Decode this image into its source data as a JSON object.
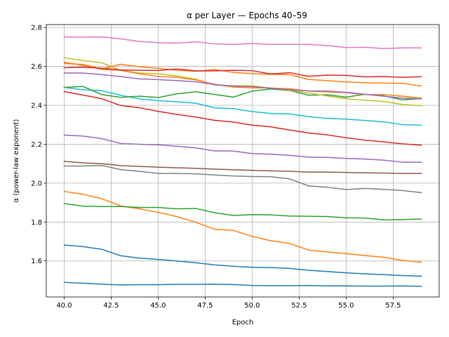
{
  "chart_data": {
    "type": "line",
    "title": "α per Layer — Epochs 40–59",
    "xlabel": "Epoch",
    "ylabel": "α (power-law exponent)",
    "xlim": [
      39.05,
      59.95
    ],
    "ylim": [
      1.415,
      2.815
    ],
    "xticks": [
      40.0,
      42.5,
      45.0,
      47.5,
      50.0,
      52.5,
      55.0,
      57.5
    ],
    "xtick_labels": [
      "40.0",
      "42.5",
      "45.0",
      "47.5",
      "50.0",
      "52.5",
      "55.0",
      "57.5"
    ],
    "yticks": [
      1.6,
      1.8,
      2.0,
      2.2,
      2.4,
      2.6,
      2.8
    ],
    "ytick_labels": [
      "1.6",
      "1.8",
      "2.0",
      "2.2",
      "2.4",
      "2.6",
      "2.8"
    ],
    "grid": true,
    "x": [
      40,
      41,
      42,
      43,
      44,
      45,
      46,
      47,
      48,
      49,
      50,
      51,
      52,
      53,
      54,
      55,
      56,
      57,
      58,
      59
    ],
    "series": [
      {
        "color": "#1f77b4",
        "values": [
          1.49,
          1.486,
          1.481,
          1.477,
          1.478,
          1.478,
          1.48,
          1.48,
          1.481,
          1.479,
          1.474,
          1.473,
          1.473,
          1.474,
          1.472,
          1.472,
          1.471,
          1.471,
          1.472,
          1.47
        ]
      },
      {
        "color": "#1f77b4",
        "values": [
          1.682,
          1.674,
          1.66,
          1.627,
          1.615,
          1.608,
          1.6,
          1.591,
          1.58,
          1.573,
          1.568,
          1.566,
          1.562,
          1.552,
          1.546,
          1.539,
          1.534,
          1.53,
          1.525,
          1.522
        ]
      },
      {
        "color": "#ff7f0e",
        "values": [
          1.957,
          1.943,
          1.92,
          1.883,
          1.868,
          1.85,
          1.828,
          1.799,
          1.763,
          1.757,
          1.726,
          1.704,
          1.69,
          1.656,
          1.647,
          1.638,
          1.628,
          1.619,
          1.603,
          1.594
        ]
      },
      {
        "color": "#2ca02c",
        "values": [
          1.895,
          1.882,
          1.88,
          1.88,
          1.875,
          1.875,
          1.868,
          1.87,
          1.848,
          1.834,
          1.838,
          1.837,
          1.831,
          1.83,
          1.828,
          1.822,
          1.821,
          1.811,
          1.813,
          1.816
        ]
      },
      {
        "color": "#8c564b",
        "values": [
          2.112,
          2.104,
          2.1,
          2.09,
          2.086,
          2.082,
          2.079,
          2.076,
          2.072,
          2.069,
          2.066,
          2.063,
          2.061,
          2.057,
          2.057,
          2.055,
          2.053,
          2.052,
          2.05,
          2.05
        ]
      },
      {
        "color": "#7f7f7f",
        "values": [
          2.088,
          2.088,
          2.091,
          2.07,
          2.061,
          2.05,
          2.05,
          2.048,
          2.042,
          2.037,
          2.034,
          2.033,
          2.022,
          1.986,
          1.979,
          1.967,
          1.973,
          1.968,
          1.962,
          1.951
        ]
      },
      {
        "color": "#9467bd",
        "values": [
          2.247,
          2.242,
          2.229,
          2.204,
          2.2,
          2.197,
          2.19,
          2.181,
          2.166,
          2.165,
          2.152,
          2.149,
          2.143,
          2.134,
          2.132,
          2.127,
          2.124,
          2.118,
          2.108,
          2.108
        ]
      },
      {
        "color": "#d62728",
        "values": [
          2.471,
          2.453,
          2.434,
          2.399,
          2.388,
          2.369,
          2.353,
          2.34,
          2.323,
          2.314,
          2.298,
          2.289,
          2.273,
          2.258,
          2.248,
          2.233,
          2.221,
          2.212,
          2.202,
          2.195
        ]
      },
      {
        "color": "#17becf",
        "values": [
          2.492,
          2.48,
          2.475,
          2.452,
          2.433,
          2.424,
          2.418,
          2.411,
          2.387,
          2.383,
          2.368,
          2.358,
          2.356,
          2.342,
          2.333,
          2.329,
          2.322,
          2.315,
          2.301,
          2.298
        ]
      },
      {
        "color": "#2ca02c",
        "values": [
          2.492,
          2.497,
          2.455,
          2.441,
          2.447,
          2.44,
          2.459,
          2.47,
          2.456,
          2.442,
          2.473,
          2.484,
          2.476,
          2.452,
          2.454,
          2.442,
          2.457,
          2.449,
          2.428,
          2.435
        ]
      },
      {
        "color": "#bcbd22",
        "values": [
          2.645,
          2.63,
          2.619,
          2.579,
          2.566,
          2.563,
          2.551,
          2.534,
          2.504,
          2.5,
          2.5,
          2.488,
          2.477,
          2.463,
          2.448,
          2.434,
          2.426,
          2.42,
          2.404,
          2.398
        ]
      },
      {
        "color": "#ff7f0e",
        "values": [
          2.622,
          2.605,
          2.585,
          2.58,
          2.562,
          2.549,
          2.544,
          2.531,
          2.508,
          2.494,
          2.49,
          2.489,
          2.485,
          2.473,
          2.469,
          2.465,
          2.455,
          2.455,
          2.447,
          2.437
        ]
      },
      {
        "color": "#ff7f0e",
        "values": [
          2.615,
          2.61,
          2.587,
          2.611,
          2.598,
          2.59,
          2.58,
          2.575,
          2.584,
          2.569,
          2.563,
          2.559,
          2.558,
          2.533,
          2.527,
          2.52,
          2.516,
          2.514,
          2.513,
          2.499
        ]
      },
      {
        "color": "#d62728",
        "values": [
          2.593,
          2.596,
          2.591,
          2.582,
          2.58,
          2.579,
          2.587,
          2.577,
          2.577,
          2.58,
          2.578,
          2.561,
          2.568,
          2.549,
          2.555,
          2.554,
          2.546,
          2.548,
          2.544,
          2.547
        ]
      },
      {
        "color": "#9467bd",
        "values": [
          2.566,
          2.566,
          2.558,
          2.548,
          2.536,
          2.532,
          2.527,
          2.521,
          2.507,
          2.499,
          2.496,
          2.487,
          2.48,
          2.474,
          2.473,
          2.467,
          2.457,
          2.447,
          2.437,
          2.433
        ]
      },
      {
        "color": "#e377c2",
        "values": [
          2.752,
          2.75,
          2.752,
          2.742,
          2.728,
          2.722,
          2.72,
          2.726,
          2.716,
          2.713,
          2.718,
          2.713,
          2.713,
          2.713,
          2.707,
          2.697,
          2.698,
          2.692,
          2.695,
          2.695
        ]
      }
    ]
  }
}
